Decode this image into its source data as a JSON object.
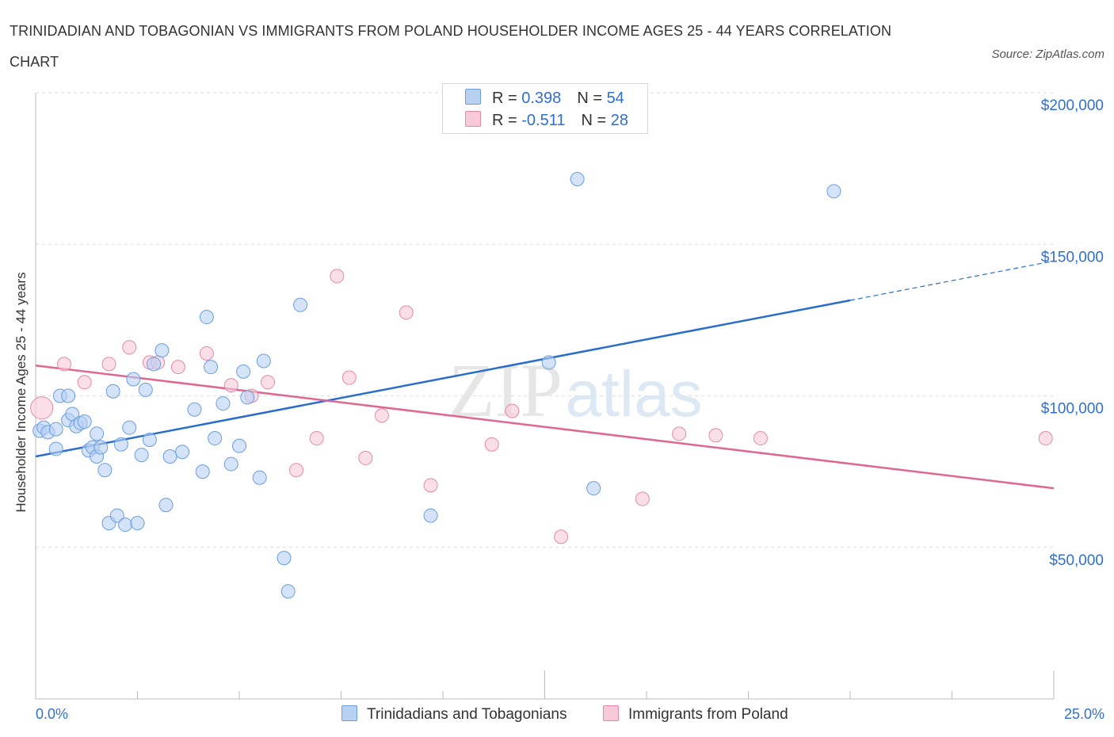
{
  "title": "TRINIDADIAN AND TOBAGONIAN VS IMMIGRANTS FROM POLAND HOUSEHOLDER INCOME AGES 25 - 44 YEARS CORRELATION CHART",
  "source": "Source: ZipAtlas.com",
  "watermark": {
    "zip": "ZIP",
    "atlas": "atlas"
  },
  "legend": {
    "rows": [
      {
        "r_label": "R = ",
        "r_value": "0.398",
        "n_label": "N = ",
        "n_value": "54"
      },
      {
        "r_label": "R = ",
        "r_value": "-0.511",
        "n_label": "N = ",
        "n_value": "28"
      }
    ]
  },
  "colors": {
    "blue_fill": "#b8d1f3",
    "blue_stroke": "#6a9ee0",
    "blue_line": "#2a6dcc",
    "pink_fill": "#f8c9d8",
    "pink_stroke": "#e58aa6",
    "pink_line": "#e06890",
    "axis_text": "#2f6fd0",
    "grid": "#dddddd"
  },
  "chart_data": {
    "type": "scatter",
    "title": "TRINIDADIAN AND TOBAGONIAN VS IMMIGRANTS FROM POLAND HOUSEHOLDER INCOME AGES 25 - 44 YEARS CORRELATION CHART",
    "xlabel": "",
    "ylabel": "Householder Income Ages 25 - 44 years",
    "xlim": [
      0,
      25
    ],
    "ylim": [
      0,
      200000
    ],
    "x_tick_labels": [
      "0.0%",
      "25.0%"
    ],
    "y_ticks": [
      50000,
      100000,
      150000,
      200000
    ],
    "y_tick_labels": [
      "$50,000",
      "$100,000",
      "$150,000",
      "$200,000"
    ],
    "grid": true,
    "legend_placement": "top-center and bottom",
    "series": [
      {
        "name": "Trinidadians and Tobagonians",
        "color": "#6a9ee0",
        "trend": {
          "x": [
            0,
            20
          ],
          "y": [
            80000,
            131500
          ],
          "dashed_extension_to": [
            25,
            144500
          ]
        },
        "points": [
          [
            0.1,
            88500
          ],
          [
            0.2,
            89500
          ],
          [
            0.3,
            88000
          ],
          [
            0.5,
            89000
          ],
          [
            0.5,
            82500
          ],
          [
            0.6,
            100000
          ],
          [
            0.8,
            100000
          ],
          [
            0.8,
            92000
          ],
          [
            0.9,
            94000
          ],
          [
            1.0,
            90000
          ],
          [
            1.1,
            91000
          ],
          [
            1.2,
            91500
          ],
          [
            1.3,
            82000
          ],
          [
            1.4,
            83000
          ],
          [
            1.5,
            80000
          ],
          [
            1.5,
            87500
          ],
          [
            1.6,
            83000
          ],
          [
            1.7,
            75500
          ],
          [
            1.8,
            58000
          ],
          [
            1.9,
            101500
          ],
          [
            2.0,
            60500
          ],
          [
            2.1,
            84000
          ],
          [
            2.2,
            57500
          ],
          [
            2.3,
            89500
          ],
          [
            2.4,
            105500
          ],
          [
            2.5,
            58000
          ],
          [
            2.6,
            80500
          ],
          [
            2.7,
            102000
          ],
          [
            2.8,
            85500
          ],
          [
            2.9,
            110500
          ],
          [
            3.1,
            115000
          ],
          [
            3.2,
            64000
          ],
          [
            3.3,
            80000
          ],
          [
            3.6,
            81500
          ],
          [
            3.9,
            95500
          ],
          [
            4.1,
            75000
          ],
          [
            4.2,
            126000
          ],
          [
            4.3,
            109500
          ],
          [
            4.4,
            86000
          ],
          [
            4.6,
            97500
          ],
          [
            4.8,
            77500
          ],
          [
            5.0,
            83500
          ],
          [
            5.1,
            108000
          ],
          [
            5.2,
            99500
          ],
          [
            5.5,
            73000
          ],
          [
            5.6,
            111500
          ],
          [
            6.1,
            46500
          ],
          [
            6.2,
            35500
          ],
          [
            6.5,
            130000
          ],
          [
            9.7,
            60500
          ],
          [
            12.6,
            111000
          ],
          [
            13.3,
            171500
          ],
          [
            13.7,
            69500
          ],
          [
            19.6,
            167500
          ]
        ]
      },
      {
        "name": "Immigrants from Poland",
        "color": "#e58aa6",
        "trend": {
          "x": [
            0,
            25
          ],
          "y": [
            110000,
            69500
          ]
        },
        "points": [
          [
            0.15,
            96000
          ],
          [
            0.7,
            110500
          ],
          [
            1.2,
            104500
          ],
          [
            1.8,
            110500
          ],
          [
            2.3,
            116000
          ],
          [
            2.8,
            111000
          ],
          [
            3.0,
            111000
          ],
          [
            3.5,
            109500
          ],
          [
            4.2,
            114000
          ],
          [
            4.8,
            103500
          ],
          [
            5.3,
            100000
          ],
          [
            5.7,
            104500
          ],
          [
            6.4,
            75500
          ],
          [
            6.9,
            86000
          ],
          [
            7.4,
            139500
          ],
          [
            7.7,
            106000
          ],
          [
            8.1,
            79500
          ],
          [
            8.5,
            93500
          ],
          [
            9.1,
            127500
          ],
          [
            9.7,
            70500
          ],
          [
            11.2,
            84000
          ],
          [
            11.7,
            95000
          ],
          [
            12.9,
            53500
          ],
          [
            14.9,
            66000
          ],
          [
            15.8,
            87500
          ],
          [
            16.7,
            87000
          ],
          [
            17.8,
            86000
          ],
          [
            24.8,
            86000
          ]
        ]
      }
    ]
  },
  "bottom_legend": {
    "items": [
      "Trinidadians and Tobagonians",
      "Immigrants from Poland"
    ]
  }
}
